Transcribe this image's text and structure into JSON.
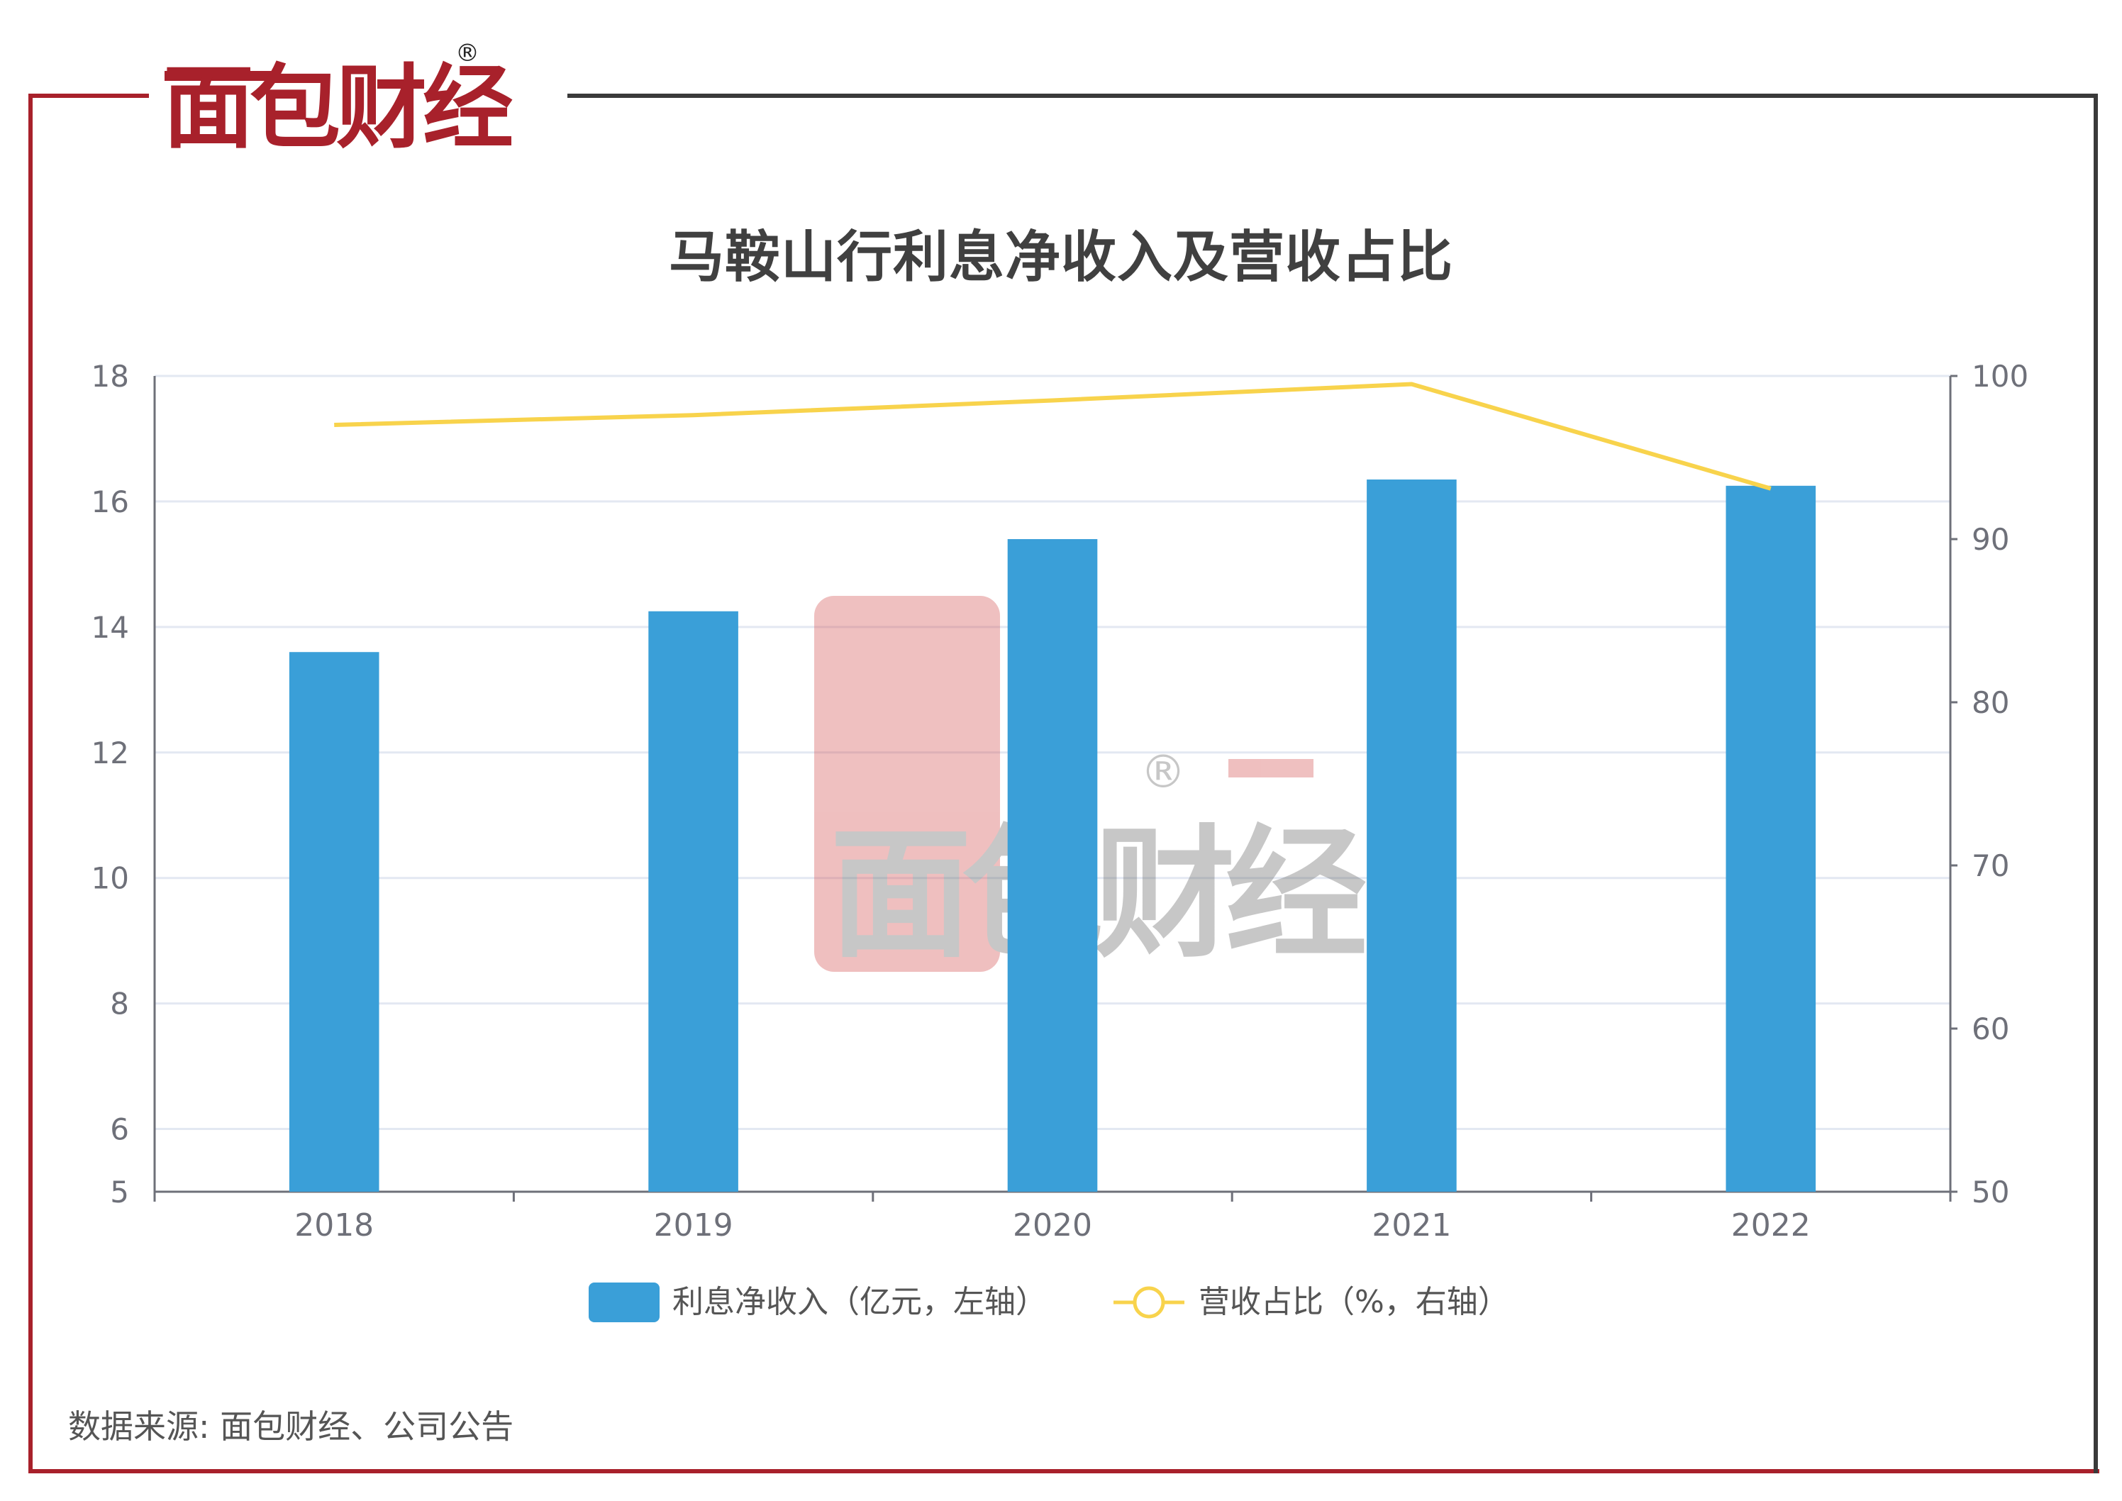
{
  "brand": {
    "logo_text": "面包财经",
    "registered_mark": "®"
  },
  "header": {
    "title": "马鞍山行利息净收入及营收占比"
  },
  "footer": {
    "source": "数据来源: 面包财经、公司公告"
  },
  "colors": {
    "frame_red": "#A8212B",
    "frame_dark": "#3a3a3a",
    "bar": "#3A9FD8",
    "line": "#F8D34C",
    "grid": "#E3E8F2",
    "axis": "#6E7079",
    "tick_text": "#6E7079"
  },
  "chart_data": {
    "type": "bar",
    "categories": [
      "2018",
      "2019",
      "2020",
      "2021",
      "2022"
    ],
    "series": [
      {
        "name": "利息净收入（亿元，左轴）",
        "type": "bar",
        "axis": "left",
        "values": [
          13.6,
          14.25,
          15.4,
          16.35,
          16.25
        ]
      },
      {
        "name": "营收占比（%，右轴）",
        "type": "line",
        "axis": "right",
        "values": [
          97.0,
          97.6,
          98.5,
          99.5,
          93.1
        ]
      }
    ],
    "y_left": {
      "ylim": [
        5,
        18
      ],
      "ticks": [
        5,
        6,
        8,
        10,
        12,
        14,
        16,
        18
      ]
    },
    "y_right": {
      "ylim": [
        50,
        100
      ],
      "ticks": [
        50,
        60,
        70,
        80,
        90,
        100
      ]
    },
    "grid": true,
    "legend_position": "bottom-center"
  }
}
